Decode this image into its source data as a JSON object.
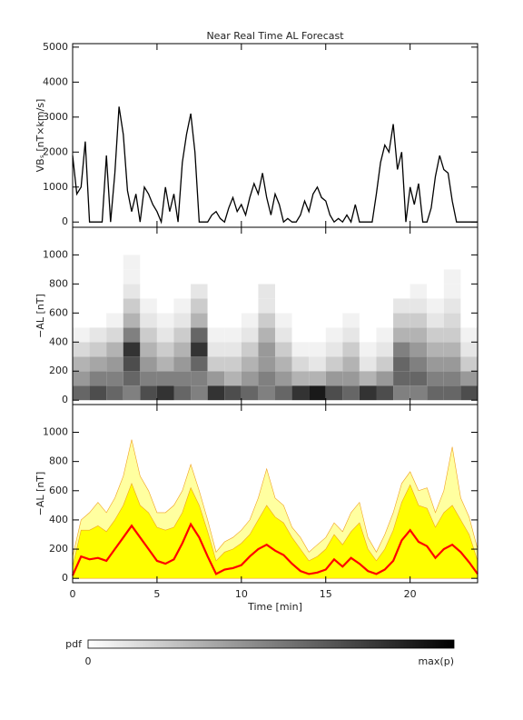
{
  "chart_data": [
    {
      "type": "line",
      "title": "Near Real Time AL Forecast",
      "ylabel": "VBₛ [nT×km/s]",
      "xlim": [
        0,
        24
      ],
      "ylim": [
        -150,
        5100
      ],
      "yticks": [
        0,
        1000,
        2000,
        3000,
        4000,
        5000
      ],
      "color": "#000000",
      "x": [
        0,
        0.25,
        0.5,
        0.75,
        1,
        1.25,
        1.5,
        1.75,
        2,
        2.25,
        2.5,
        2.75,
        3,
        3.25,
        3.5,
        3.75,
        4,
        4.25,
        4.5,
        4.75,
        5,
        5.25,
        5.5,
        5.75,
        6,
        6.25,
        6.5,
        6.75,
        7,
        7.25,
        7.5,
        7.75,
        8,
        8.25,
        8.5,
        8.75,
        9,
        9.25,
        9.5,
        9.75,
        10,
        10.25,
        10.5,
        10.75,
        11,
        11.25,
        11.5,
        11.75,
        12,
        12.25,
        12.5,
        12.75,
        13,
        13.25,
        13.5,
        13.75,
        14,
        14.25,
        14.5,
        14.75,
        15,
        15.25,
        15.5,
        15.75,
        16,
        16.25,
        16.5,
        16.75,
        17,
        17.25,
        17.5,
        17.75,
        18,
        18.25,
        18.5,
        18.75,
        19,
        19.25,
        19.5,
        19.75,
        20,
        20.25,
        20.5,
        20.75,
        21,
        21.25,
        21.5,
        21.75,
        22,
        22.25,
        22.5,
        22.75,
        23,
        23.25,
        23.5,
        23.75,
        24
      ],
      "values": [
        1900,
        800,
        1000,
        2300,
        0,
        0,
        0,
        0,
        1900,
        0,
        1400,
        3300,
        2500,
        900,
        300,
        800,
        0,
        1000,
        800,
        500,
        300,
        0,
        1000,
        300,
        800,
        0,
        1700,
        2500,
        3100,
        2000,
        0,
        0,
        0,
        200,
        300,
        100,
        0,
        400,
        700,
        300,
        500,
        200,
        700,
        1100,
        800,
        1400,
        700,
        200,
        800,
        500,
        0,
        100,
        0,
        0,
        200,
        600,
        300,
        800,
        1000,
        700,
        600,
        200,
        0,
        100,
        0,
        200,
        0,
        500,
        0,
        0,
        0,
        0,
        800,
        1700,
        2200,
        2000,
        2800,
        1500,
        2000,
        0,
        1000,
        500,
        1100,
        0,
        0,
        400,
        1300,
        1900,
        1500,
        1400,
        600,
        0,
        0,
        0,
        0,
        0,
        0
      ]
    },
    {
      "type": "heatmap",
      "ylabel": "−AL [nT]",
      "xlim": [
        0,
        24
      ],
      "ylim": [
        -30,
        1190
      ],
      "yticks": [
        0,
        200,
        400,
        600,
        800,
        1000
      ],
      "x_bins": [
        0,
        1,
        2,
        3,
        4,
        5,
        6,
        7,
        8,
        9,
        10,
        11,
        12,
        13,
        14,
        15,
        16,
        17,
        18,
        19,
        20,
        21,
        22,
        23,
        24
      ],
      "y_bins": [
        0,
        100,
        200,
        300,
        400,
        500,
        600,
        700,
        800,
        900,
        1000
      ],
      "values": [
        [
          0.6,
          0.4,
          0.3,
          0.15,
          0.05,
          0,
          0,
          0,
          0,
          0
        ],
        [
          0.7,
          0.5,
          0.35,
          0.2,
          0.1,
          0,
          0,
          0,
          0,
          0
        ],
        [
          0.6,
          0.5,
          0.4,
          0.3,
          0.15,
          0.05,
          0,
          0,
          0,
          0
        ],
        [
          0.5,
          0.6,
          0.7,
          0.8,
          0.5,
          0.3,
          0.2,
          0.1,
          0.05,
          0.05
        ],
        [
          0.7,
          0.5,
          0.4,
          0.3,
          0.2,
          0.1,
          0.05,
          0,
          0,
          0
        ],
        [
          0.8,
          0.5,
          0.3,
          0.2,
          0.1,
          0.05,
          0,
          0,
          0,
          0
        ],
        [
          0.6,
          0.5,
          0.4,
          0.3,
          0.2,
          0.1,
          0.05,
          0,
          0,
          0
        ],
        [
          0.5,
          0.5,
          0.6,
          0.8,
          0.6,
          0.3,
          0.2,
          0.1,
          0,
          0
        ],
        [
          0.8,
          0.4,
          0.2,
          0.1,
          0.05,
          0,
          0,
          0,
          0,
          0
        ],
        [
          0.7,
          0.3,
          0.2,
          0.1,
          0.05,
          0,
          0,
          0,
          0,
          0
        ],
        [
          0.6,
          0.4,
          0.3,
          0.2,
          0.1,
          0.05,
          0,
          0,
          0,
          0
        ],
        [
          0.5,
          0.5,
          0.4,
          0.4,
          0.3,
          0.2,
          0.1,
          0.1,
          0,
          0
        ],
        [
          0.6,
          0.4,
          0.3,
          0.2,
          0.1,
          0.05,
          0,
          0,
          0,
          0
        ],
        [
          0.8,
          0.3,
          0.15,
          0.05,
          0,
          0,
          0,
          0,
          0,
          0
        ],
        [
          0.9,
          0.3,
          0.1,
          0.05,
          0,
          0,
          0,
          0,
          0,
          0
        ],
        [
          0.7,
          0.4,
          0.2,
          0.1,
          0.05,
          0,
          0,
          0,
          0,
          0
        ],
        [
          0.6,
          0.4,
          0.3,
          0.2,
          0.1,
          0.05,
          0,
          0,
          0,
          0
        ],
        [
          0.8,
          0.3,
          0.1,
          0.05,
          0,
          0,
          0,
          0,
          0,
          0
        ],
        [
          0.7,
          0.4,
          0.2,
          0.1,
          0.05,
          0,
          0,
          0,
          0,
          0
        ],
        [
          0.5,
          0.6,
          0.6,
          0.5,
          0.3,
          0.2,
          0.1,
          0,
          0,
          0
        ],
        [
          0.5,
          0.6,
          0.5,
          0.4,
          0.3,
          0.2,
          0.1,
          0.05,
          0,
          0
        ],
        [
          0.6,
          0.5,
          0.4,
          0.3,
          0.2,
          0.1,
          0.05,
          0,
          0,
          0
        ],
        [
          0.6,
          0.5,
          0.4,
          0.3,
          0.2,
          0.15,
          0.1,
          0.05,
          0.05,
          0
        ],
        [
          0.7,
          0.4,
          0.2,
          0.1,
          0.05,
          0,
          0,
          0,
          0,
          0
        ]
      ]
    },
    {
      "type": "band",
      "ylabel": "−AL [nT]",
      "xlabel": "Time [min]",
      "xlim": [
        0,
        24
      ],
      "ylim": [
        -30,
        1190
      ],
      "xticks": [
        0,
        5,
        10,
        15,
        20
      ],
      "yticks": [
        0,
        200,
        400,
        600,
        800,
        1000
      ],
      "x": [
        0,
        0.5,
        1,
        1.5,
        2,
        2.5,
        3,
        3.5,
        4,
        4.5,
        5,
        5.5,
        6,
        6.5,
        7,
        7.5,
        8,
        8.5,
        9,
        9.5,
        10,
        10.5,
        11,
        11.5,
        12,
        12.5,
        13,
        13.5,
        14,
        14.5,
        15,
        15.5,
        16,
        16.5,
        17,
        17.5,
        18,
        18.5,
        19,
        19.5,
        20,
        20.5,
        21,
        21.5,
        22,
        22.5,
        23,
        23.5,
        24
      ],
      "series": [
        {
          "color": "#ffffa0",
          "values": [
            150,
            400,
            450,
            520,
            450,
            550,
            700,
            950,
            700,
            600,
            450,
            450,
            500,
            600,
            780,
            600,
            400,
            180,
            250,
            280,
            330,
            400,
            550,
            750,
            550,
            500,
            350,
            280,
            180,
            230,
            280,
            380,
            320,
            450,
            520,
            280,
            180,
            300,
            450,
            650,
            730,
            600,
            620,
            450,
            600,
            900,
            550,
            420,
            200
          ]
        },
        {
          "color": "#ffff00",
          "values": [
            80,
            330,
            330,
            360,
            320,
            400,
            500,
            650,
            500,
            450,
            350,
            330,
            350,
            450,
            620,
            500,
            320,
            120,
            180,
            200,
            240,
            300,
            400,
            500,
            420,
            380,
            280,
            200,
            120,
            150,
            200,
            300,
            230,
            320,
            380,
            200,
            120,
            200,
            330,
            520,
            640,
            500,
            480,
            350,
            450,
            500,
            400,
            300,
            120
          ]
        },
        {
          "color": "#ff0000",
          "values": [
            20,
            150,
            130,
            140,
            120,
            200,
            280,
            360,
            280,
            200,
            120,
            100,
            130,
            240,
            370,
            280,
            150,
            30,
            60,
            70,
            90,
            150,
            200,
            230,
            190,
            160,
            100,
            50,
            30,
            40,
            60,
            130,
            80,
            140,
            100,
            50,
            30,
            60,
            120,
            260,
            330,
            250,
            220,
            140,
            200,
            230,
            180,
            110,
            30
          ]
        }
      ]
    }
  ],
  "colorbar": {
    "label": "pdf",
    "min_label": "0",
    "max_label": "max(p)"
  }
}
